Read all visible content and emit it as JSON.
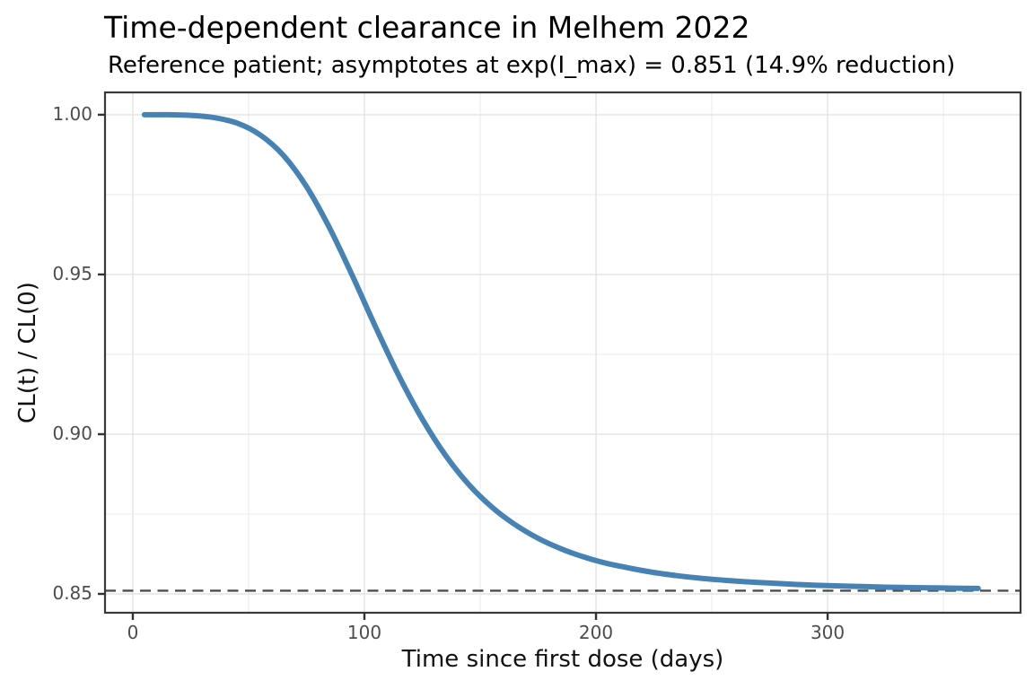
{
  "header": {
    "title": "Time-dependent clearance in Melhem 2022",
    "subtitle": "Reference patient; asymptotes at exp(I_max) = 0.851 (14.9% reduction)"
  },
  "colors": {
    "curve": "#4682B4",
    "asymptote_line": "#4d4d4d",
    "grid_major": "#e3e3e3",
    "grid_minor": "#efefef",
    "panel_border": "#3a3a3a",
    "tick_mark": "#333333",
    "tick_label": "#4d4d4d",
    "background": "#ffffff"
  },
  "chart_data": {
    "type": "line",
    "title": "Time-dependent clearance in Melhem 2022",
    "subtitle": "Reference patient; asymptotes at exp(I_max) = 0.851 (14.9% reduction)",
    "xlabel": "Time since first dose (days)",
    "ylabel": "CL(t) / CL(0)",
    "xlim": [
      -12.0,
      383.3
    ],
    "ylim": [
      0.8441,
      1.007
    ],
    "x_ticks": [
      0,
      100,
      200,
      300
    ],
    "x_tick_labels": [
      "0",
      "100",
      "200",
      "300"
    ],
    "x_minor_ticks": [
      50,
      150,
      250,
      350
    ],
    "y_ticks": [
      0.85,
      0.9,
      0.95,
      1.0
    ],
    "y_tick_labels": [
      "0.85",
      "0.90",
      "0.95",
      "1.00"
    ],
    "y_minor_ticks": [
      0.875,
      0.925,
      0.975
    ],
    "grid": "major and minor, light gray on white",
    "legend": "none",
    "asymptote": {
      "y": 0.851,
      "style": "dashed",
      "meaning": "exp(I_max) asymptote, 14.9% reduction"
    },
    "series": [
      {
        "name": "CL(t) / CL(0), reference patient",
        "color": "#4682B4",
        "x": [
          5,
          15,
          25,
          35,
          45,
          55,
          65,
          75,
          85,
          95,
          105,
          115,
          125,
          135,
          145,
          155,
          165,
          175,
          185,
          195,
          205,
          215,
          225,
          235,
          245,
          255,
          265,
          275,
          285,
          295,
          305,
          315,
          325,
          335,
          345,
          355,
          365
        ],
        "y": [
          1.0,
          1.0,
          0.9998,
          0.9991,
          0.9974,
          0.9937,
          0.9873,
          0.9775,
          0.9645,
          0.9493,
          0.9333,
          0.9181,
          0.9047,
          0.8934,
          0.8843,
          0.8772,
          0.8717,
          0.8674,
          0.8641,
          0.8615,
          0.8595,
          0.858,
          0.8567,
          0.8557,
          0.8549,
          0.8543,
          0.8538,
          0.8534,
          0.853,
          0.8527,
          0.8525,
          0.8523,
          0.8521,
          0.852,
          0.8519,
          0.8518,
          0.8517
        ]
      }
    ]
  }
}
